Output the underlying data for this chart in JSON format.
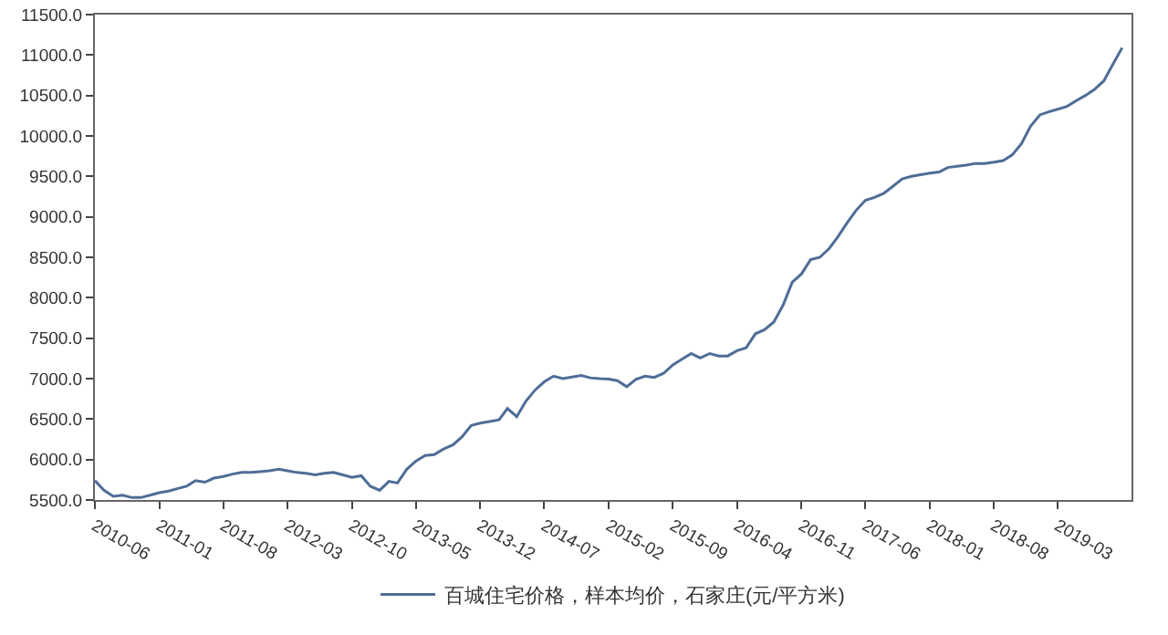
{
  "chart_data": {
    "type": "line",
    "x": [
      "2010-06",
      "2010-07",
      "2010-08",
      "2010-09",
      "2010-10",
      "2010-11",
      "2010-12",
      "2011-01",
      "2011-02",
      "2011-03",
      "2011-04",
      "2011-05",
      "2011-06",
      "2011-07",
      "2011-08",
      "2011-09",
      "2011-10",
      "2011-11",
      "2011-12",
      "2012-01",
      "2012-02",
      "2012-03",
      "2012-04",
      "2012-05",
      "2012-06",
      "2012-07",
      "2012-08",
      "2012-09",
      "2012-10",
      "2012-11",
      "2012-12",
      "2013-01",
      "2013-02",
      "2013-03",
      "2013-04",
      "2013-05",
      "2013-06",
      "2013-07",
      "2013-08",
      "2013-09",
      "2013-10",
      "2013-11",
      "2013-12",
      "2014-01",
      "2014-02",
      "2014-03",
      "2014-04",
      "2014-05",
      "2014-06",
      "2014-07",
      "2014-08",
      "2014-09",
      "2014-10",
      "2014-11",
      "2014-12",
      "2015-01",
      "2015-02",
      "2015-03",
      "2015-04",
      "2015-05",
      "2015-06",
      "2015-07",
      "2015-08",
      "2015-09",
      "2015-10",
      "2015-11",
      "2015-12",
      "2016-01",
      "2016-02",
      "2016-03",
      "2016-04",
      "2016-05",
      "2016-06",
      "2016-07",
      "2016-08",
      "2016-09",
      "2016-10",
      "2016-11",
      "2016-12",
      "2017-01",
      "2017-02",
      "2017-03",
      "2017-04",
      "2017-05",
      "2017-06",
      "2017-07",
      "2017-08",
      "2017-09",
      "2017-10",
      "2017-11",
      "2017-12",
      "2018-01",
      "2018-02",
      "2018-03",
      "2018-04",
      "2018-05",
      "2018-06",
      "2018-07",
      "2018-08",
      "2018-09",
      "2018-10",
      "2018-11",
      "2018-12",
      "2019-01",
      "2019-02",
      "2019-03",
      "2019-04",
      "2019-05",
      "2019-06",
      "2019-07",
      "2019-08",
      "2019-09",
      "2019-10"
    ],
    "series": [
      {
        "name": "百城住宅价格，样本均价，石家庄(元/平方米)",
        "color": "#4e6d96",
        "values": [
          5740,
          5620,
          5545,
          5560,
          5530,
          5530,
          5560,
          5590,
          5610,
          5640,
          5670,
          5740,
          5720,
          5770,
          5790,
          5820,
          5840,
          5840,
          5850,
          5860,
          5880,
          5860,
          5840,
          5830,
          5810,
          5830,
          5840,
          5810,
          5780,
          5800,
          5670,
          5620,
          5730,
          5710,
          5880,
          5980,
          6050,
          6060,
          6130,
          6180,
          6280,
          6420,
          6450,
          6470,
          6490,
          6630,
          6530,
          6720,
          6860,
          6960,
          7030,
          7000,
          7020,
          7040,
          7010,
          7000,
          6995,
          6975,
          6900,
          6990,
          7030,
          7015,
          7065,
          7170,
          7240,
          7310,
          7255,
          7310,
          7280,
          7280,
          7345,
          7380,
          7555,
          7605,
          7700,
          7910,
          8190,
          8295,
          8470,
          8500,
          8610,
          8750,
          8925,
          9080,
          9205,
          9240,
          9290,
          9380,
          9470,
          9500,
          9520,
          9540,
          9555,
          9610,
          9625,
          9640,
          9660,
          9660,
          9675,
          9695,
          9765,
          9905,
          10120,
          10260,
          10300,
          10330,
          10365,
          10435,
          10500,
          10575,
          10680,
          10890,
          11090
        ]
      }
    ],
    "xlim": [
      "2010-06",
      "2019-11"
    ],
    "xticks": [
      {
        "value": "2010-06",
        "label": "2010-06"
      },
      {
        "value": "2011-01",
        "label": "2011-01"
      },
      {
        "value": "2011-08",
        "label": "2011-08"
      },
      {
        "value": "2012-03",
        "label": "2012-03"
      },
      {
        "value": "2012-10",
        "label": "2012-10"
      },
      {
        "value": "2013-05",
        "label": "2013-05"
      },
      {
        "value": "2013-12",
        "label": "2013-12"
      },
      {
        "value": "2014-07",
        "label": "2014-07"
      },
      {
        "value": "2015-02",
        "label": "2015-02"
      },
      {
        "value": "2015-09",
        "label": "2015-09"
      },
      {
        "value": "2016-04",
        "label": "2016-04"
      },
      {
        "value": "2016-11",
        "label": "2016-11"
      },
      {
        "value": "2017-06",
        "label": "2017-06"
      },
      {
        "value": "2018-01",
        "label": "2018-01"
      },
      {
        "value": "2018-08",
        "label": "2018-08"
      },
      {
        "value": "2019-03",
        "label": "2019-03"
      }
    ],
    "ylim": [
      5500,
      11500
    ],
    "yticks": [
      {
        "value": 5500,
        "label": "5500.0"
      },
      {
        "value": 6000,
        "label": "6000.0"
      },
      {
        "value": 6500,
        "label": "6500.0"
      },
      {
        "value": 7000,
        "label": "7000.0"
      },
      {
        "value": 7500,
        "label": "7500.0"
      },
      {
        "value": 8000,
        "label": "8000.0"
      },
      {
        "value": 8500,
        "label": "8500.0"
      },
      {
        "value": 9000,
        "label": "9000.0"
      },
      {
        "value": 9500,
        "label": "9500.0"
      },
      {
        "value": 10000,
        "label": "10000.0"
      },
      {
        "value": 10500,
        "label": "10500.0"
      },
      {
        "value": 11000,
        "label": "11000.0"
      },
      {
        "value": 11500,
        "label": "11500.0"
      }
    ],
    "grid": false,
    "legend": "bottom",
    "marker": "none",
    "line_style": "solid"
  }
}
